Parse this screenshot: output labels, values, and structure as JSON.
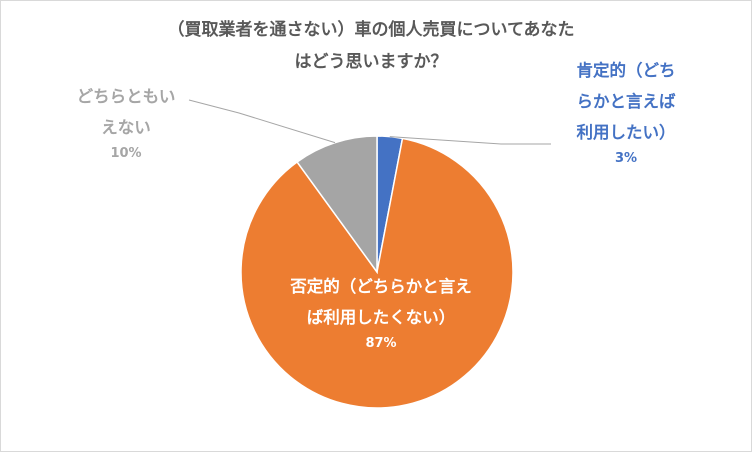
{
  "chart_data": {
    "type": "pie",
    "title_lines": [
      "（買取業者を通さない）車の個人売買についてあなた",
      "はどう思いますか？"
    ],
    "slices": [
      {
        "label_lines": [
          "肯定的（どち",
          "らかと言えば",
          "利用したい）"
        ],
        "value": 3,
        "percent_label": "3%",
        "color": "#4472c4",
        "label_color": "#4472c4"
      },
      {
        "label_lines": [
          "否定的（どちらかと言え",
          "ば利用したくない）"
        ],
        "value": 87,
        "percent_label": "87%",
        "color": "#ed7d31",
        "label_color": "#ffffff"
      },
      {
        "label_lines": [
          "どちらともい",
          "えない"
        ],
        "value": 10,
        "percent_label": "10%",
        "color": "#a5a5a5",
        "label_color": "#a6a6a6"
      }
    ],
    "start_angle_deg": 0,
    "direction": "clockwise",
    "legend": "none"
  }
}
